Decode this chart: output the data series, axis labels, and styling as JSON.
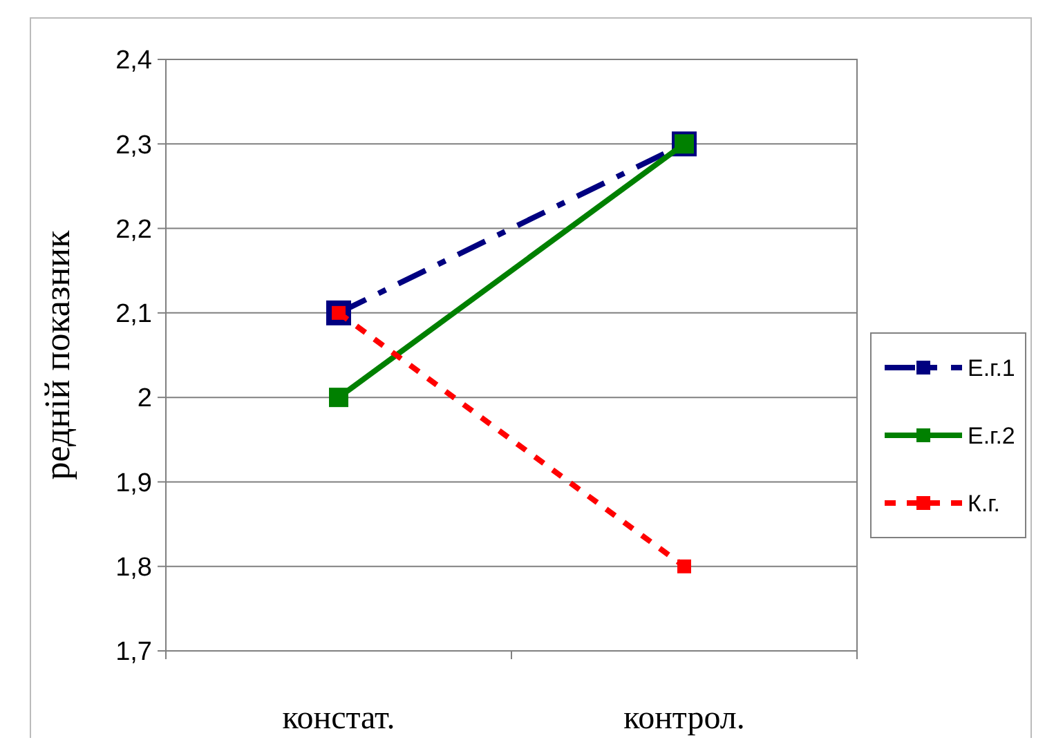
{
  "chart_data": {
    "type": "line",
    "ylabel": "редній показник",
    "categories": [
      "констат.",
      "контрол."
    ],
    "ylim": [
      1.7,
      2.4
    ],
    "yticks": [
      {
        "value": 1.7,
        "label": "1,7"
      },
      {
        "value": 1.8,
        "label": "1,8"
      },
      {
        "value": 1.9,
        "label": "1,9"
      },
      {
        "value": 2,
        "label": "2"
      },
      {
        "value": 2.1,
        "label": "2,1"
      },
      {
        "value": 2.2,
        "label": "2,2"
      },
      {
        "value": 2.3,
        "label": "2,3"
      },
      {
        "value": 2.4,
        "label": "2,4"
      }
    ],
    "grid": "y",
    "legend": "right",
    "marker": "square",
    "series": [
      {
        "name": "Е.г.1",
        "color": "#000080",
        "values": [
          2.1,
          2.3
        ],
        "line_style": "dashed"
      },
      {
        "name": "Е.г.2",
        "color": "#008000",
        "values": [
          2.0,
          2.3
        ],
        "line_style": "solid"
      },
      {
        "name": "К.г.",
        "color": "#ff0000",
        "values": [
          2.1,
          1.8
        ],
        "line_style": "dotted"
      }
    ]
  }
}
